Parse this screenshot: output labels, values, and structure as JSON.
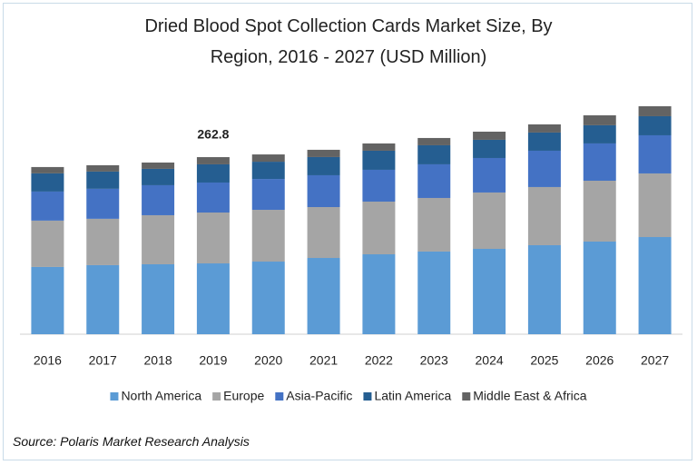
{
  "chart_data": {
    "type": "stacked_bar",
    "title": "Dried Blood Spot Collection Cards Market Size, By Region, 2016 - 2027 (USD Million)",
    "categories": [
      "2016",
      "2017",
      "2018",
      "2019",
      "2020",
      "2021",
      "2022",
      "2023",
      "2024",
      "2025",
      "2026",
      "2027"
    ],
    "series": [
      {
        "name": "North America",
        "color": "#5b9bd5",
        "values": [
          99.8,
          102.5,
          103.8,
          105.1,
          107.8,
          113.2,
          118.6,
          122.7,
          126.7,
          132.1,
          137.5,
          144.2
        ]
      },
      {
        "name": "Europe",
        "color": "#a5a5a5",
        "values": [
          68.8,
          68.8,
          72.8,
          75.5,
          76.8,
          75.5,
          78.2,
          79.5,
          83.6,
          86.3,
          90.3,
          94.4
        ]
      },
      {
        "name": "Asia-Pacific",
        "color": "#4472c4",
        "values": [
          43.1,
          44.5,
          44.5,
          44.5,
          45.8,
          47.2,
          47.2,
          49.9,
          51.2,
          53.9,
          55.3,
          56.6
        ]
      },
      {
        "name": "Latin America",
        "color": "#255e91",
        "values": [
          27.0,
          25.6,
          24.3,
          27.0,
          25.6,
          27.0,
          28.3,
          28.3,
          27.0,
          27.0,
          27.0,
          28.3
        ]
      },
      {
        "name": "Middle East & Africa",
        "color": "#636363",
        "values": [
          9.4,
          9.4,
          9.4,
          10.7,
          10.8,
          10.8,
          10.8,
          10.8,
          12.1,
          12.1,
          14.8,
          14.8
        ]
      }
    ],
    "annotations": [
      {
        "category": "2019",
        "value": 262.8
      }
    ],
    "source": "Source: Polaris Market Research Analysis"
  }
}
